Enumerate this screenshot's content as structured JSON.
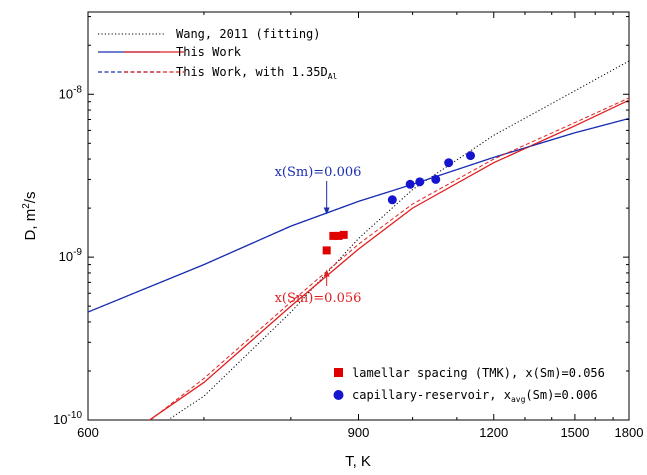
{
  "chart_data": {
    "type": "line",
    "xlabel": "T, K",
    "ylabel_main": "D, m",
    "ylabel_sup": "2",
    "ylabel_tail": "/s",
    "x_axis": {
      "kind": "reciprocal",
      "lim": [
        600,
        1800
      ],
      "ticks": [
        600,
        900,
        1200,
        1500,
        1800
      ]
    },
    "y_axis": {
      "kind": "log",
      "lim": [
        1e-10,
        3.2e-08
      ],
      "ticks": [
        {
          "value": 1e-10,
          "label_base": "10",
          "label_exp": "-10"
        },
        {
          "value": 1e-09,
          "label_base": "10",
          "label_exp": "-9"
        },
        {
          "value": 1e-08,
          "label_base": "10",
          "label_exp": "-8"
        }
      ]
    },
    "grid": false,
    "legend_lines": {
      "position": "top-left",
      "entries": [
        {
          "label": "Wang, 2011 (fitting)",
          "style": "dotted",
          "colors": [
            "#000000"
          ]
        },
        {
          "label": "This Work",
          "style": "solid",
          "colors": [
            "#1a2fb0",
            "#e02020"
          ]
        },
        {
          "label_main": "This Work, with 1.35D",
          "label_sub": "Al",
          "style": "dashed",
          "colors": [
            "#1a2fb0",
            "#e02020"
          ]
        }
      ]
    },
    "legend_markers": {
      "position": "bottom-right",
      "entries": [
        {
          "label": "lamellar spacing (TMK), x(Sm)=0.056",
          "marker": "square",
          "color": "#e00000"
        },
        {
          "label_main": "capillary-reservoir, x",
          "label_sub": "avg",
          "label_tail": "(Sm)=0.006",
          "marker": "circle",
          "color": "#1515d0"
        }
      ]
    },
    "series": [
      {
        "name": "Wang, 2011 (fitting)",
        "style": "dotted",
        "color": "#000000",
        "x": [
          650,
          700,
          800,
          900,
          1000,
          1200,
          1500,
          1800
        ],
        "y": [
          8.5e-11,
          1.4e-10,
          4.6e-10,
          1.3e-09,
          2.6e-09,
          5.6e-09,
          1.05e-08,
          1.6e-08
        ]
      },
      {
        "name": "This Work",
        "style": "solid",
        "color": "#1a2fb0",
        "x": [
          600,
          700,
          800,
          900,
          1000,
          1200,
          1500,
          1800
        ],
        "y": [
          4.6e-10,
          9e-10,
          1.55e-09,
          2.2e-09,
          2.8e-09,
          4.1e-09,
          5.8e-09,
          7.1e-09
        ]
      },
      {
        "name": "This Work",
        "style": "solid",
        "color": "#e02020",
        "x": [
          640,
          700,
          800,
          900,
          1000,
          1200,
          1500,
          1800
        ],
        "y": [
          9e-11,
          1.7e-10,
          5e-10,
          1.12e-09,
          2e-09,
          3.8e-09,
          6.4e-09,
          9.2e-09
        ]
      },
      {
        "name": "This Work, with 1.35D",
        "style": "dashed",
        "color": "#1a2fb0",
        "x": [
          600,
          700,
          800,
          900,
          1000,
          1200,
          1500,
          1800
        ],
        "y": [
          4.6e-10,
          9e-10,
          1.55e-09,
          2.2e-09,
          2.8e-09,
          4.1e-09,
          5.8e-09,
          7.1e-09
        ]
      },
      {
        "name": "This Work, with 1.35D",
        "style": "dashed",
        "color": "#e02020",
        "x": [
          650,
          700,
          800,
          900,
          1000,
          1200,
          1500,
          1800
        ],
        "y": [
          1e-10,
          1.8e-10,
          5.3e-10,
          1.2e-09,
          2.12e-09,
          4e-09,
          6.7e-09,
          9.5e-09
        ]
      }
    ],
    "points": [
      {
        "name": "lamellar spacing (TMK), x(Sm)=0.056",
        "marker": "square",
        "color": "#e00000",
        "x": [
          850,
          860,
          868,
          876
        ],
        "y": [
          1.1e-09,
          1.35e-09,
          1.35e-09,
          1.37e-09
        ]
      },
      {
        "name": "capillary-reservoir, xavg(Sm)=0.006",
        "marker": "circle",
        "color": "#1515d0",
        "x": [
          960,
          995,
          1015,
          1050,
          1080,
          1135
        ],
        "y": [
          2.25e-09,
          2.8e-09,
          2.9e-09,
          3e-09,
          3.8e-09,
          4.2e-09
        ]
      }
    ],
    "annotations": [
      {
        "text": "x(Sm)=0.006",
        "color": "#1a2fb0",
        "arrow_to": {
          "x": 850,
          "y": 1.8e-09
        }
      },
      {
        "text": "x(Sm)=0.056",
        "color": "#e02020",
        "arrow_to": {
          "x": 850,
          "y": 8.5e-10
        }
      }
    ]
  }
}
